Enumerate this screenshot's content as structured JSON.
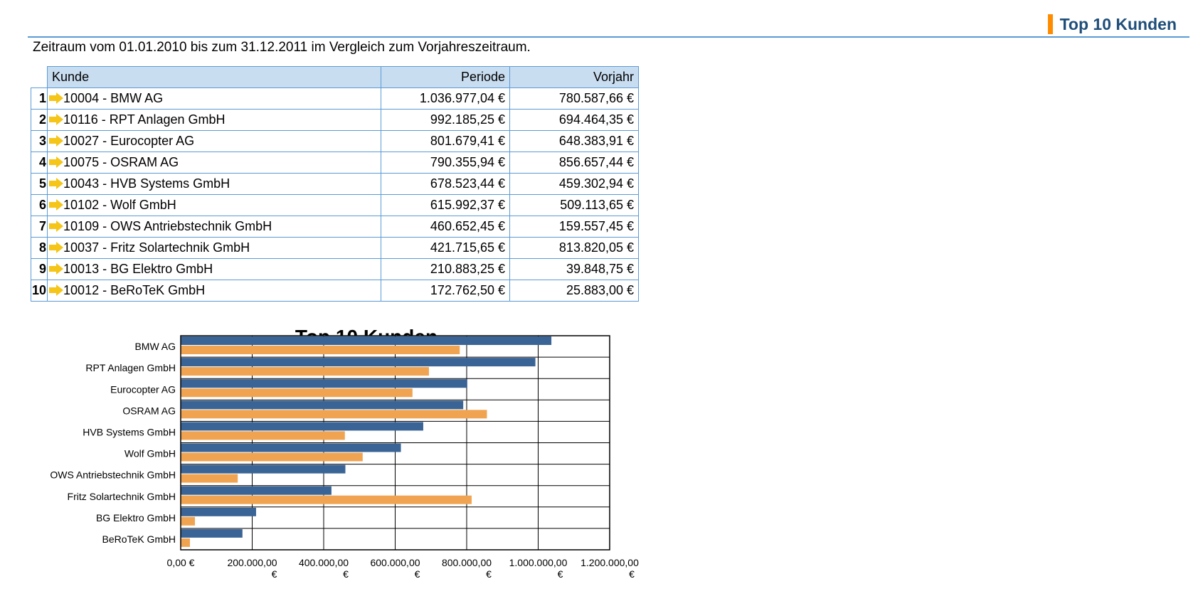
{
  "header": {
    "title": "Top 10 Kunden"
  },
  "subtitle": "Zeitraum vom 01.01.2010 bis zum 31.12.2011 im Vergleich zum Vorjahreszeitraum.",
  "table": {
    "columns": [
      "Kunde",
      "Periode",
      "Vorjahr"
    ],
    "rows": [
      {
        "rank": "1",
        "kunde": "10004 - BMW AG",
        "periode": "1.036.977,04 €",
        "vorjahr": "780.587,66 €"
      },
      {
        "rank": "2",
        "kunde": "10116 - RPT Anlagen GmbH",
        "periode": "992.185,25 €",
        "vorjahr": "694.464,35 €"
      },
      {
        "rank": "3",
        "kunde": "10027 - Eurocopter AG",
        "periode": "801.679,41 €",
        "vorjahr": "648.383,91 €"
      },
      {
        "rank": "4",
        "kunde": "10075 - OSRAM AG",
        "periode": "790.355,94 €",
        "vorjahr": "856.657,44 €"
      },
      {
        "rank": "5",
        "kunde": "10043 - HVB Systems GmbH",
        "periode": "678.523,44 €",
        "vorjahr": "459.302,94 €"
      },
      {
        "rank": "6",
        "kunde": "10102 - Wolf GmbH",
        "periode": "615.992,37 €",
        "vorjahr": "509.113,65 €"
      },
      {
        "rank": "7",
        "kunde": "10109 - OWS Antriebstechnik GmbH",
        "periode": "460.652,45 €",
        "vorjahr": "159.557,45 €"
      },
      {
        "rank": "8",
        "kunde": "10037 - Fritz Solartechnik GmbH",
        "periode": "421.715,65 €",
        "vorjahr": "813.820,05 €"
      },
      {
        "rank": "9",
        "kunde": "10013 - BG Elektro GmbH",
        "periode": "210.883,25 €",
        "vorjahr": "39.848,75 €"
      },
      {
        "rank": "10",
        "kunde": "10012 - BeRoTeK GmbH",
        "periode": "172.762,50 €",
        "vorjahr": "25.883,00 €"
      }
    ]
  },
  "icons": {
    "row_icon": "arrow-right-icon",
    "arrow_color": "#f5c518"
  },
  "chart_data": {
    "type": "bar",
    "orientation": "horizontal",
    "title": "Top 10 Kunden",
    "categories": [
      "BMW AG",
      "RPT Anlagen GmbH",
      "Eurocopter AG",
      "OSRAM AG",
      "HVB Systems GmbH",
      "Wolf GmbH",
      "OWS Antriebstechnik GmbH",
      "Fritz Solartechnik GmbH",
      "BG Elektro GmbH",
      "BeRoTeK GmbH"
    ],
    "series": [
      {
        "values": [
          1036977.04,
          992185.25,
          801679.41,
          790355.94,
          678523.44,
          615992.37,
          460652.45,
          421715.65,
          210883.25,
          172762.5
        ],
        "color": "#3a6496"
      },
      {
        "values": [
          780587.66,
          694464.35,
          648383.91,
          856657.44,
          459302.94,
          509113.65,
          159557.45,
          813820.05,
          39848.75,
          25883.0
        ],
        "color": "#f0a452"
      }
    ],
    "xlim": [
      0,
      1200000
    ],
    "xticks": [
      0,
      200000,
      400000,
      600000,
      800000,
      1000000,
      1200000
    ],
    "xtick_labels": [
      {
        "main": "0,00 €",
        "unit": ""
      },
      {
        "main": "200.000,00",
        "unit": "€"
      },
      {
        "main": "400.000,00",
        "unit": "€"
      },
      {
        "main": "600.000,00",
        "unit": "€"
      },
      {
        "main": "800.000,00",
        "unit": "€"
      },
      {
        "main": "1.000.000,00",
        "unit": "€"
      },
      {
        "main": "1.200.000,00",
        "unit": "€"
      }
    ],
    "grid": true,
    "legend": "none"
  }
}
